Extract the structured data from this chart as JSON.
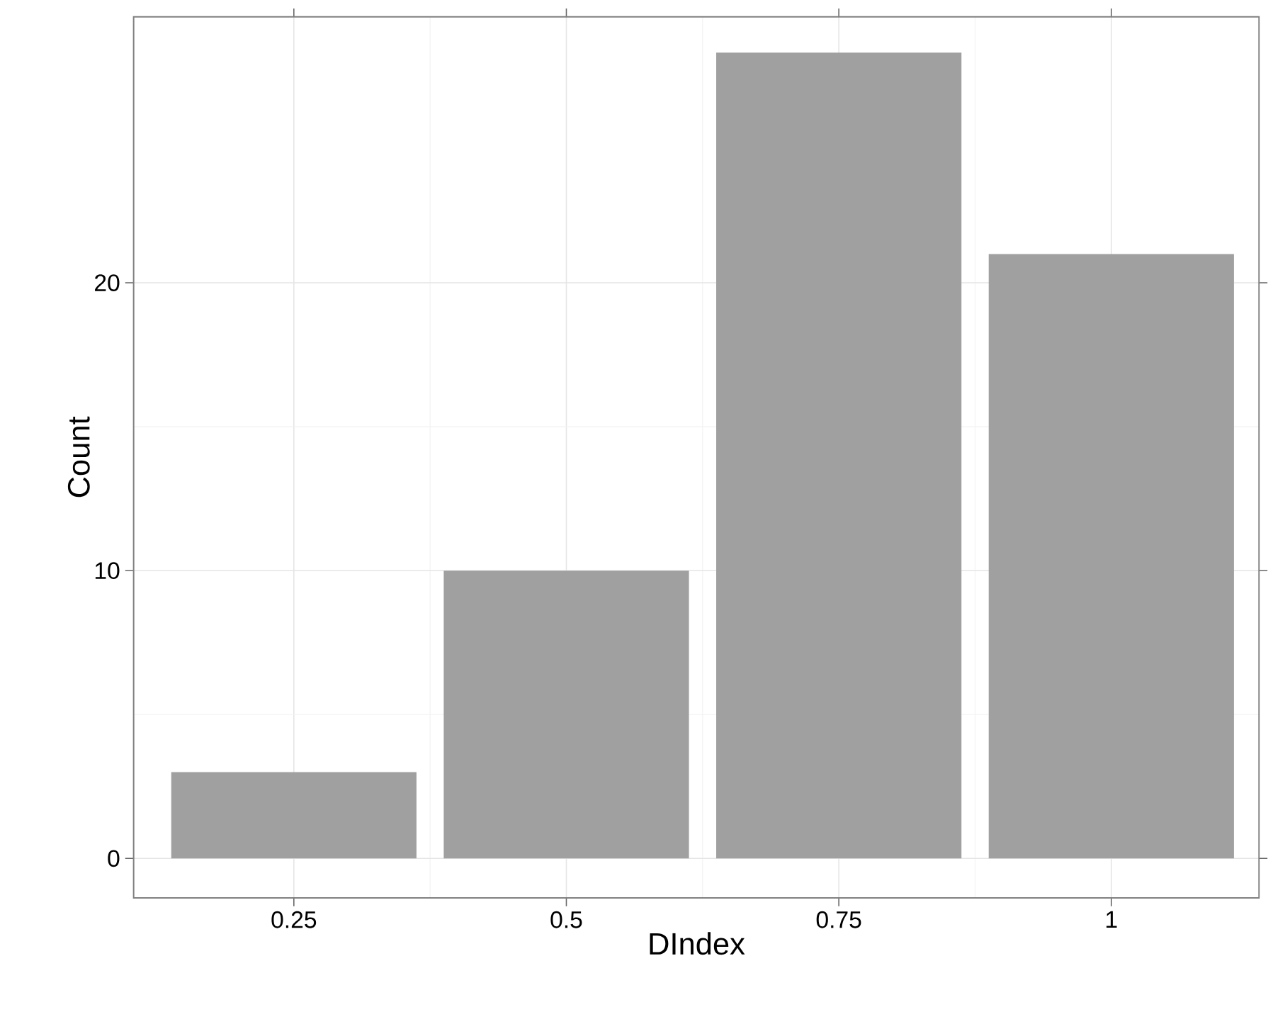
{
  "chart_data": {
    "type": "bar",
    "xlabel": "DIndex",
    "ylabel": "Count",
    "x": [
      0.25,
      0.5,
      0.75,
      1
    ],
    "values": [
      3,
      10,
      28,
      21
    ],
    "color": "#a0a0a0",
    "xlim": [
      0.103,
      1.1355
    ],
    "ylim": [
      -1.37,
      29.24
    ],
    "xticks": [
      0.25,
      0.5,
      0.75,
      1
    ],
    "yticks": [
      0,
      10,
      20
    ],
    "grid": true
  }
}
